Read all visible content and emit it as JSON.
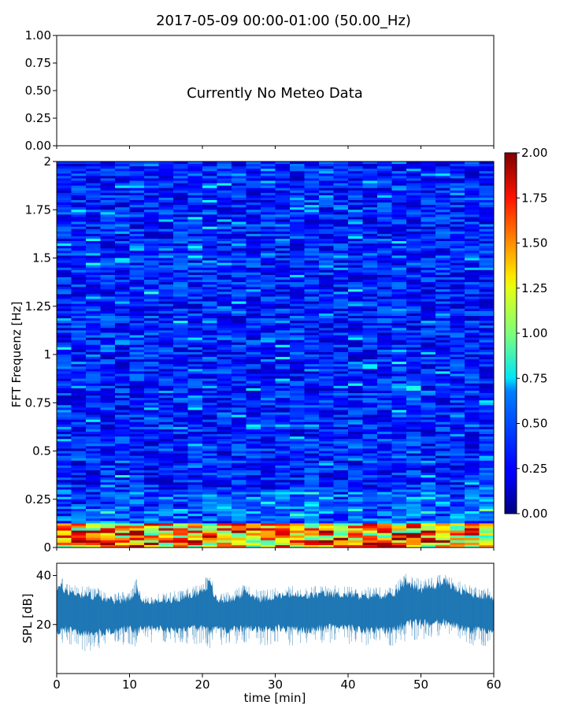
{
  "title": "2017-05-09 00:00-01:00 (50.00_Hz)",
  "chart_data": [
    {
      "type": "line",
      "panel": "meteo",
      "note_text": "Currently No Meteo Data",
      "ylim": [
        0.0,
        1.0
      ],
      "yticks": [
        "0.00",
        "0.25",
        "0.50",
        "0.75",
        "1.00"
      ],
      "xlim": [
        0,
        60
      ],
      "series": []
    },
    {
      "type": "heatmap",
      "panel": "spectrogram",
      "ylabel": "FFT Frequenz [Hz]",
      "xlim": [
        0,
        60
      ],
      "ylim": [
        0,
        2
      ],
      "yticks": [
        "0",
        "0.25",
        "0.5",
        "0.75",
        "1",
        "1.25",
        "1.5",
        "1.75",
        "2"
      ],
      "colormap": "jet",
      "colorbar": {
        "range": [
          0.0,
          2.0
        ],
        "ticks": [
          "0.00",
          "0.25",
          "0.50",
          "0.75",
          "1.00",
          "1.25",
          "1.50",
          "1.75",
          "2.00"
        ]
      },
      "description_levels": {
        "typical_value_range": [
          0.1,
          0.5
        ],
        "low_frequency_band_hz": [
          0,
          0.12
        ],
        "low_frequency_value_range": [
          0.8,
          2.0
        ]
      }
    },
    {
      "type": "area",
      "panel": "spl",
      "xlabel": "time [min]",
      "ylabel": "SPL [dB]",
      "xlim": [
        0,
        60
      ],
      "ylim": [
        0,
        45
      ],
      "xticks": [
        "0",
        "10",
        "20",
        "30",
        "40",
        "50",
        "60"
      ],
      "yticks": [
        "20",
        "40"
      ],
      "color": "#1f77b4",
      "x": [
        0,
        2,
        4,
        6,
        8,
        10,
        11,
        12,
        14,
        16,
        18,
        20,
        21,
        22,
        24,
        26,
        28,
        30,
        32,
        34,
        36,
        38,
        40,
        42,
        44,
        46,
        48,
        50,
        52,
        53.5,
        55,
        57,
        60
      ],
      "envelope_upper": [
        38,
        35,
        34,
        33,
        31,
        32,
        37,
        30,
        31,
        32,
        33,
        36,
        39,
        31,
        32,
        35,
        32,
        33,
        34,
        33,
        34,
        34,
        34,
        33,
        34,
        33,
        40,
        36,
        38,
        40,
        36,
        34,
        33
      ],
      "envelope_lower": [
        15,
        16,
        14,
        15,
        16,
        17,
        15,
        18,
        17,
        16,
        16,
        17,
        15,
        17,
        16,
        17,
        16,
        17,
        16,
        16,
        17,
        17,
        17,
        16,
        16,
        16,
        18,
        19,
        18,
        19,
        17,
        16,
        16
      ]
    }
  ]
}
